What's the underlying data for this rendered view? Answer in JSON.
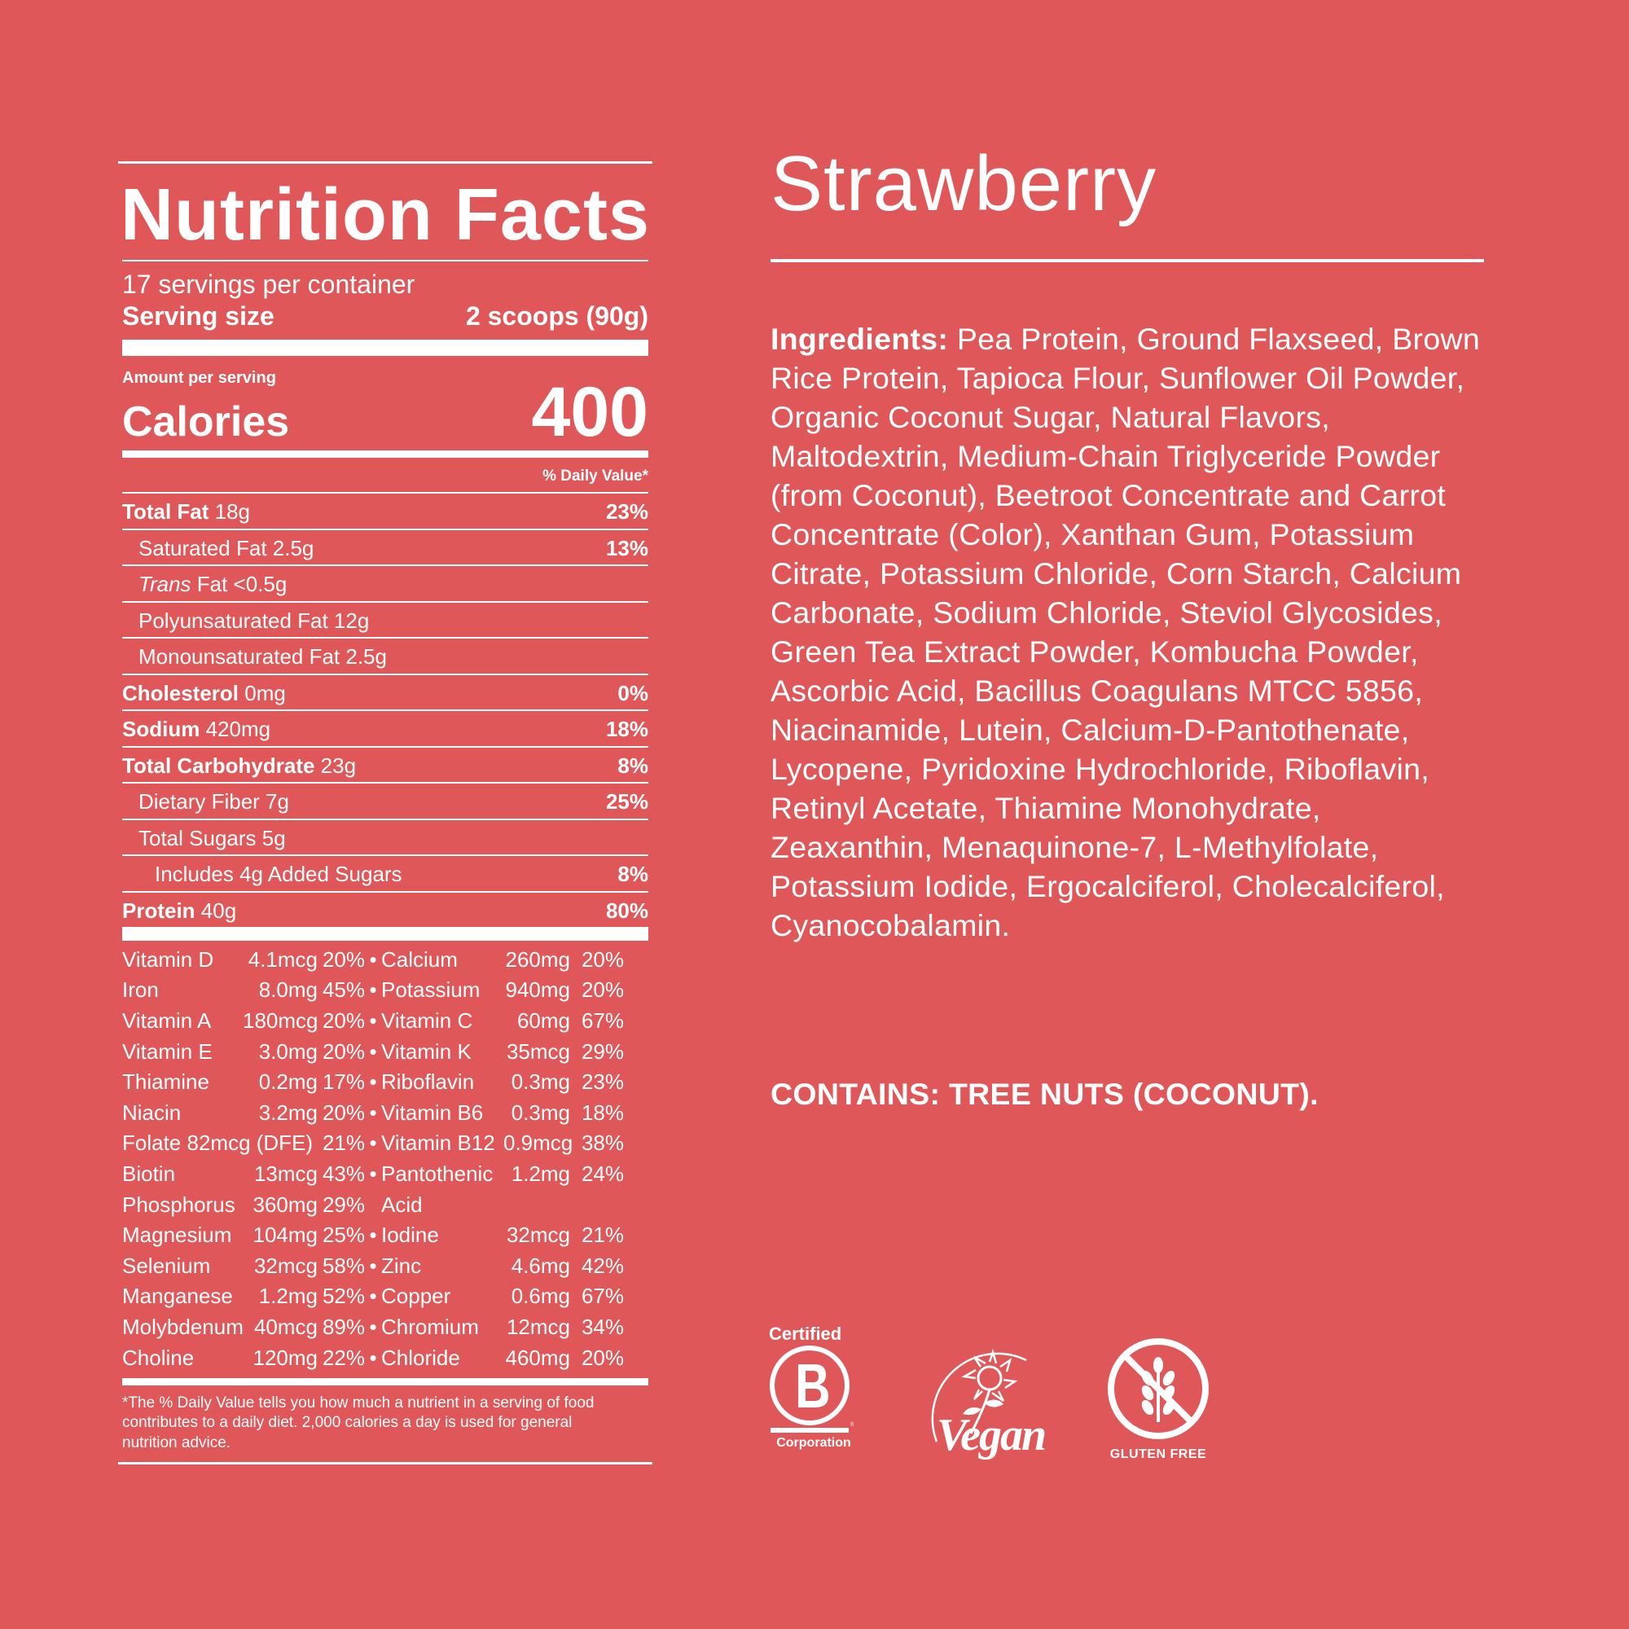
{
  "panel": {
    "title": "Nutrition Facts",
    "servings": "17 servings per container",
    "serving_size_label": "Serving size",
    "serving_size_value": "2 scoops (90g)",
    "amount_per_serving": "Amount per serving",
    "calories_label": "Calories",
    "calories_value": "400",
    "dv_header": "% Daily Value*",
    "nutrients": [
      {
        "bold": "Total Fat",
        "amount": " 18g",
        "pct": "23%"
      },
      {
        "bold": "",
        "amount": "Saturated Fat 2.5g",
        "pct": "13%"
      },
      {
        "italic": "Trans",
        "amount": " Fat <0.5g",
        "pct": ""
      },
      {
        "bold": "",
        "amount": "Polyunsaturated Fat 12g",
        "pct": ""
      },
      {
        "bold": "",
        "amount": "Monounsaturated Fat 2.5g",
        "pct": ""
      },
      {
        "bold": "Cholesterol",
        "amount": " 0mg",
        "pct": "0%"
      },
      {
        "bold": "Sodium",
        "amount": " 420mg",
        "pct": "18%"
      },
      {
        "bold": "Total Carbohydrate",
        "amount": " 23g",
        "pct": "8%"
      },
      {
        "bold": "",
        "amount": "Dietary Fiber 7g",
        "pct": "25%"
      },
      {
        "bold": "",
        "amount": "Total Sugars 5g",
        "pct": ""
      },
      {
        "bold": "",
        "amount": "Includes 4g Added Sugars",
        "pct": "8%"
      },
      {
        "bold": "Protein",
        "amount": " 40g",
        "pct": "80%"
      }
    ],
    "micronutrients": [
      {
        "n1": "Vitamin D",
        "a1": "4.1mcg",
        "p1": "20%",
        "dot": "•",
        "n2": "Calcium",
        "a2": "260mg",
        "p2": "20%"
      },
      {
        "n1": "Iron",
        "a1": "8.0mg",
        "p1": "45%",
        "dot": "•",
        "n2": "Potassium",
        "a2": "940mg",
        "p2": "20%"
      },
      {
        "n1": "Vitamin A",
        "a1": "180mcg",
        "p1": "20%",
        "dot": "•",
        "n2": "Vitamin C",
        "a2": "60mg",
        "p2": "67%"
      },
      {
        "n1": "Vitamin E",
        "a1": "3.0mg",
        "p1": "20%",
        "dot": "•",
        "n2": "Vitamin K",
        "a2": "35mcg",
        "p2": "29%"
      },
      {
        "n1": "Thiamine",
        "a1": "0.2mg",
        "p1": "17%",
        "dot": "•",
        "n2": "Riboflavin",
        "a2": "0.3mg",
        "p2": "23%"
      },
      {
        "n1": "Niacin",
        "a1": "3.2mg",
        "p1": "20%",
        "dot": "•",
        "n2": "Vitamin B6",
        "a2": "0.3mg",
        "p2": "18%"
      },
      {
        "n1": "Folate 82mcg (DFE)",
        "a1": "",
        "p1": "21%",
        "dot": "•",
        "n2": "Vitamin B12",
        "a2": "0.9mcg",
        "p2": "38%"
      },
      {
        "n1": "Biotin",
        "a1": "13mcg",
        "p1": "43%",
        "dot": "•",
        "n2": "Pantothenic",
        "a2": "1.2mg",
        "p2": "24%"
      },
      {
        "n1": "Phosphorus",
        "a1": "360mg",
        "p1": "29%",
        "dot": "",
        "n2": "Acid",
        "a2": "",
        "p2": ""
      },
      {
        "n1": "Magnesium",
        "a1": "104mg",
        "p1": "25%",
        "dot": "•",
        "n2": "Iodine",
        "a2": "32mcg",
        "p2": "21%"
      },
      {
        "n1": "Selenium",
        "a1": "32mcg",
        "p1": "58%",
        "dot": "•",
        "n2": "Zinc",
        "a2": "4.6mg",
        "p2": "42%"
      },
      {
        "n1": "Manganese",
        "a1": "1.2mg",
        "p1": "52%",
        "dot": "•",
        "n2": "Copper",
        "a2": "0.6mg",
        "p2": "67%"
      },
      {
        "n1": "Molybdenum",
        "a1": "40mcg",
        "p1": "89%",
        "dot": "•",
        "n2": "Chromium",
        "a2": "12mcg",
        "p2": "34%"
      },
      {
        "n1": "Choline",
        "a1": "120mg",
        "p1": "22%",
        "dot": "•",
        "n2": "Chloride",
        "a2": "460mg",
        "p2": "20%"
      }
    ],
    "footnote": "*The % Daily Value tells you how much a nutrient in a serving of food contributes to a daily diet. 2,000 calories a day is used for general nutrition advice."
  },
  "flavor": "Strawberry",
  "ingredients_label": "Ingredients:",
  "ingredients_text": " Pea Protein, Ground Flaxseed, Brown Rice Protein, Tapioca Flour, Sunflower Oil Powder, Organic Coconut Sugar, Natural Flavors, Maltodextrin, Medium-Chain Triglyceride Powder (from Coconut), Beetroot Concentrate and Carrot Concentrate (Color), Xanthan Gum, Potassium Citrate, Potassium Chloride, Corn Starch, Calcium Carbonate, Sodium Chloride, Steviol Glycosides, Green Tea Extract Powder, Kombucha Powder, Ascorbic Acid, Bacillus Coagulans MTCC 5856, Niacinamide, Lutein, Calcium-D-Pantothenate, Lycopene, Pyridoxine Hydrochloride, Riboflavin, Retinyl Acetate, Thiamine Monohydrate, Zeaxanthin, Menaquinone-7, L-Methylfolate, Potassium Iodide, Ergocalciferol, Cholecalciferol, Cyanocobalamin.",
  "contains": "CONTAINS: TREE NUTS (COCONUT).",
  "badges": {
    "bcorp_certified": "Certified",
    "bcorp_corporation": "Corporation",
    "vegan": "Vegan",
    "gluten_free": "GLUTEN FREE"
  },
  "colors": {
    "background": "#df5758",
    "foreground": "#ffffff"
  }
}
